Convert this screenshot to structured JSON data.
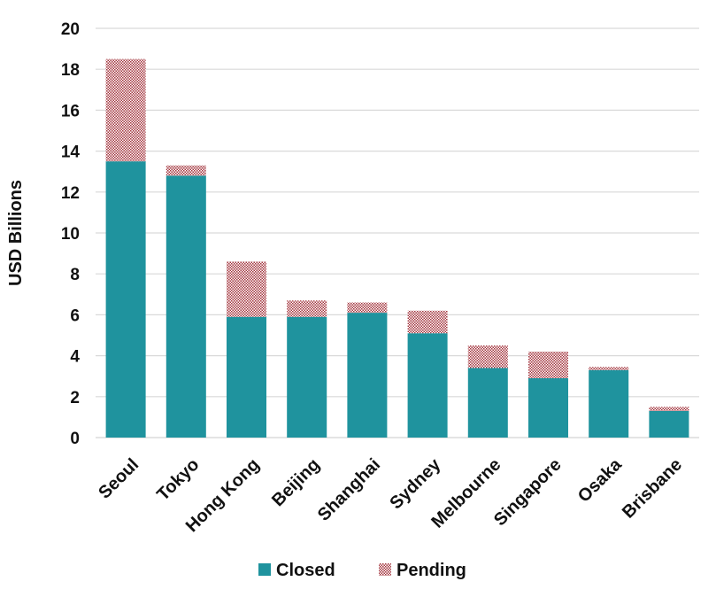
{
  "chart_data": {
    "type": "bar",
    "stacked": true,
    "title": "",
    "xlabel": "",
    "ylabel": "USD Billions",
    "ylim": [
      0,
      20
    ],
    "yticks": [
      0,
      2,
      4,
      6,
      8,
      10,
      12,
      14,
      16,
      18,
      20
    ],
    "grid": true,
    "legend_position": "bottom",
    "categories": [
      "Seoul",
      "Tokyo",
      "Hong Kong",
      "Beijing",
      "Shanghai",
      "Sydney",
      "Melbourne",
      "Singapore",
      "Osaka",
      "Brisbane"
    ],
    "series": [
      {
        "name": "Closed",
        "color": "#1f939e",
        "fill": "solid",
        "values": [
          13.5,
          12.8,
          5.9,
          5.9,
          6.1,
          5.1,
          3.4,
          2.9,
          3.3,
          1.3
        ]
      },
      {
        "name": "Pending",
        "color": "#a3343e",
        "fill": "checkered",
        "values": [
          5.0,
          0.5,
          2.7,
          0.8,
          0.5,
          1.1,
          1.1,
          1.3,
          0.15,
          0.2
        ]
      }
    ]
  }
}
